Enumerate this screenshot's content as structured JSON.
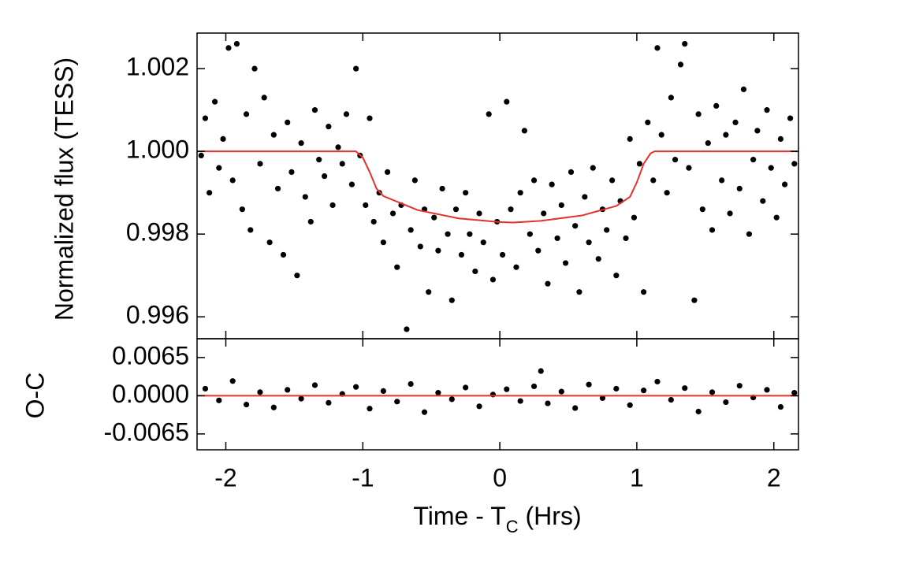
{
  "chart_data": [
    {
      "type": "scatter",
      "y_label": "Normalized flux (TESS)",
      "xlim": [
        -2.21,
        2.18
      ],
      "xticks": [
        -2,
        -1,
        0,
        1,
        2
      ],
      "ylim": [
        0.99547,
        1.00286
      ],
      "yticks": [
        {
          "value": 0.996,
          "label": "0.996"
        },
        {
          "value": 0.998,
          "label": "0.998"
        },
        {
          "value": 1.0,
          "label": "1.000"
        },
        {
          "value": 1.002,
          "label": "1.002"
        }
      ],
      "series": [
        {
          "type": "scatter",
          "color": "#000000",
          "x": [
            -2.18,
            -2.15,
            -2.12,
            -2.08,
            -2.05,
            -2.02,
            -1.98,
            -1.95,
            -1.92,
            -1.88,
            -1.85,
            -1.82,
            -1.79,
            -1.75,
            -1.72,
            -1.68,
            -1.65,
            -1.62,
            -1.58,
            -1.55,
            -1.52,
            -1.48,
            -1.45,
            -1.42,
            -1.38,
            -1.35,
            -1.32,
            -1.28,
            -1.25,
            -1.22,
            -1.18,
            -1.15,
            -1.12,
            -1.08,
            -1.05,
            -1.02,
            -0.98,
            -0.95,
            -0.92,
            -0.88,
            -0.85,
            -0.82,
            -0.78,
            -0.75,
            -0.72,
            -0.68,
            -0.65,
            -0.62,
            -0.58,
            -0.55,
            -0.52,
            -0.48,
            -0.45,
            -0.42,
            -0.38,
            -0.35,
            -0.32,
            -0.28,
            -0.25,
            -0.22,
            -0.18,
            -0.15,
            -0.12,
            -0.08,
            -0.05,
            -0.02,
            0.02,
            0.05,
            0.08,
            0.12,
            0.15,
            0.18,
            0.22,
            0.25,
            0.28,
            0.32,
            0.35,
            0.38,
            0.42,
            0.45,
            0.48,
            0.52,
            0.55,
            0.58,
            0.62,
            0.65,
            0.68,
            0.72,
            0.75,
            0.78,
            0.82,
            0.85,
            0.88,
            0.92,
            0.95,
            0.98,
            1.02,
            1.05,
            1.08,
            1.12,
            1.15,
            1.18,
            1.22,
            1.25,
            1.28,
            1.32,
            1.35,
            1.38,
            1.42,
            1.45,
            1.48,
            1.52,
            1.55,
            1.58,
            1.62,
            1.65,
            1.68,
            1.72,
            1.75,
            1.78,
            1.82,
            1.85,
            1.88,
            1.92,
            1.95,
            1.98,
            2.02,
            2.05,
            2.08,
            2.12,
            2.15
          ],
          "values": [
            0.9999,
            1.0008,
            0.999,
            1.0012,
            0.9996,
            1.0003,
            1.0025,
            0.9993,
            1.0026,
            0.9986,
            1.0009,
            0.9981,
            1.002,
            0.9997,
            1.0013,
            0.9978,
            1.0004,
            0.9991,
            0.9975,
            1.0007,
            0.9995,
            0.997,
            1.0002,
            0.9989,
            0.9983,
            1.001,
            0.9998,
            0.9994,
            1.0006,
            0.9987,
            1.0001,
            0.9997,
            1.0009,
            0.9992,
            1.002,
            0.9999,
            0.9987,
            1.0008,
            0.9983,
            0.999,
            0.9978,
            0.9995,
            0.9985,
            0.9972,
            0.9987,
            0.9957,
            0.9981,
            0.9993,
            0.9977,
            0.9986,
            0.9966,
            0.9984,
            0.9976,
            0.9991,
            0.998,
            0.9964,
            0.9986,
            0.9975,
            0.999,
            0.998,
            0.9971,
            0.9985,
            0.9978,
            1.0009,
            0.9969,
            0.9983,
            0.9975,
            1.0012,
            0.9986,
            0.9972,
            0.999,
            1.0005,
            0.998,
            0.9993,
            0.9976,
            0.9985,
            0.9968,
            0.9992,
            0.9979,
            0.9987,
            0.9973,
            0.9995,
            0.9982,
            0.9966,
            0.9989,
            0.9978,
            0.9996,
            0.9974,
            0.9986,
            0.9981,
            0.9993,
            0.997,
            0.9988,
            0.9979,
            1.0003,
            0.9984,
            0.9997,
            0.9966,
            1.0007,
            0.9993,
            1.0025,
            1.0004,
            0.999,
            1.0013,
            0.9998,
            1.0021,
            1.0026,
            0.9996,
            0.9964,
            1.0009,
            0.9986,
            1.0002,
            0.9981,
            1.0011,
            0.9993,
            1.0004,
            0.9985,
            1.0007,
            0.9991,
            1.0015,
            0.998,
            0.9998,
            1.0005,
            0.9988,
            1.001,
            0.9996,
            0.9984,
            1.0003,
            0.9992,
            1.0008,
            0.9997
          ]
        },
        {
          "type": "line",
          "color": "#e8302a",
          "x": [
            -2.21,
            -1.05,
            -1.0,
            -0.95,
            -0.9,
            -0.85,
            -0.6,
            -0.3,
            0,
            0.1,
            0.3,
            0.6,
            0.85,
            0.95,
            1.0,
            1.05,
            1.1,
            1.13,
            2.18
          ],
          "values": [
            1.0,
            1.0,
            0.99985,
            0.9995,
            0.9991,
            0.99892,
            0.99858,
            0.99838,
            0.99829,
            0.99828,
            0.99832,
            0.99845,
            0.99868,
            0.9989,
            0.99925,
            0.9997,
            0.99995,
            1.0,
            1.0
          ]
        }
      ]
    },
    {
      "type": "scatter",
      "y_label": "O-C",
      "x_label": "Time - T",
      "x_label_sub": "C",
      "x_label_end": " (Hrs)",
      "xlim": [
        -2.21,
        2.18
      ],
      "xticks": [
        -2,
        -1,
        0,
        1,
        2
      ],
      "ylim": [
        -0.0092,
        0.0097
      ],
      "yticks": [
        -0.0065,
        {
          "value": 0,
          "label": "0.0000"
        },
        0.0065
      ],
      "series": [
        {
          "type": "scatter",
          "color": "#000000",
          "x": [
            -2.15,
            -2.05,
            -1.95,
            -1.85,
            -1.75,
            -1.65,
            -1.55,
            -1.45,
            -1.35,
            -1.25,
            -1.15,
            -1.05,
            -0.95,
            -0.85,
            -0.75,
            -0.65,
            -0.55,
            -0.45,
            -0.35,
            -0.25,
            -0.15,
            -0.05,
            0.05,
            0.15,
            0.25,
            0.3,
            0.35,
            0.45,
            0.55,
            0.65,
            0.75,
            0.85,
            0.95,
            1.05,
            1.15,
            1.25,
            1.35,
            1.45,
            1.55,
            1.65,
            1.75,
            1.85,
            1.95,
            2.05,
            2.15
          ],
          "values": [
            0.0012,
            -0.0008,
            0.0025,
            -0.0015,
            0.0006,
            -0.002,
            0.001,
            -0.0005,
            0.0018,
            -0.0012,
            0.0003,
            0.0015,
            -0.0022,
            0.0008,
            -0.001,
            0.002,
            -0.0028,
            0.0005,
            -0.0006,
            0.0014,
            -0.0018,
            0.0002,
            0.0011,
            -0.0009,
            0.0016,
            0.0042,
            -0.0013,
            0.0007,
            -0.0021,
            0.0019,
            -0.0004,
            0.0012,
            -0.0016,
            0.0009,
            0.0024,
            -0.0007,
            0.0013,
            -0.0027,
            0.0006,
            -0.0011,
            0.0017,
            -0.0003,
            0.001,
            -0.0019,
            0.0005
          ]
        },
        {
          "type": "line",
          "color": "#e8302a",
          "x": [
            -2.21,
            2.18
          ],
          "values": [
            0,
            0
          ]
        }
      ]
    }
  ]
}
